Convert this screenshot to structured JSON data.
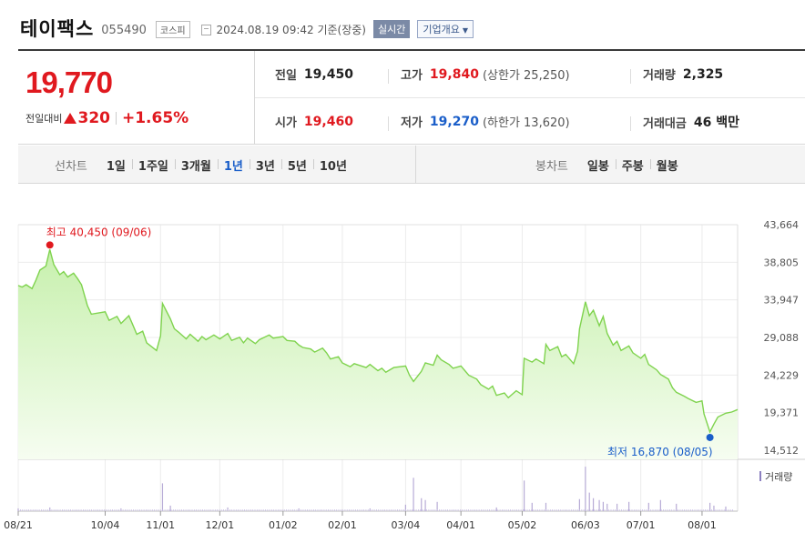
{
  "stock": {
    "name": "테이팩스",
    "code": "055490",
    "market": "코스피",
    "datetime": "2024.08.19 09:42",
    "basis": "기준(장중)",
    "realtime_label": "실시간",
    "overview_label": "기업개요"
  },
  "quote": {
    "price": "19,770",
    "change_label": "전일대비",
    "change": "320",
    "change_pct": "+1.65%",
    "prev_close_label": "전일",
    "prev_close": "19,450",
    "high_label": "고가",
    "high": "19,840",
    "upper_limit": "(상한가 25,250)",
    "volume_label": "거래량",
    "volume": "2,325",
    "open_label": "시가",
    "open": "19,460",
    "low_label": "저가",
    "low": "19,270",
    "lower_limit": "(하한가 13,620)",
    "amount_label": "거래대금",
    "amount": "46 백만",
    "up_color": "#e0191f",
    "down_color": "#1a5ec9"
  },
  "periods": {
    "label": "선차트",
    "items": [
      "1일",
      "1주일",
      "3개월",
      "1년",
      "3년",
      "5년",
      "10년"
    ],
    "active": "1년"
  },
  "candles": {
    "label": "봉차트",
    "items": [
      "일봉",
      "주봉",
      "월봉"
    ]
  },
  "chart_data": {
    "type": "area",
    "x_labels": [
      "08/21",
      "10/04",
      "11/01",
      "12/01",
      "01/02",
      "02/01",
      "03/04",
      "04/01",
      "05/02",
      "06/03",
      "07/01",
      "08/01"
    ],
    "y_ticks": [
      "43,664",
      "38,805",
      "33,947",
      "29,088",
      "24,229",
      "19,371",
      "14,512"
    ],
    "ylim": [
      14512,
      43664
    ],
    "max_label": "최고 40,450 (09/06)",
    "min_label": "최저 16,870 (08/05)",
    "volume_legend": "거래량",
    "line_color": "#7fd34e",
    "fill_color": "#e9f9df",
    "price_series": [
      [
        "2023-08-21",
        35800
      ],
      [
        "2023-08-23",
        35600
      ],
      [
        "2023-08-25",
        35900
      ],
      [
        "2023-08-28",
        35400
      ],
      [
        "2023-08-30",
        36500
      ],
      [
        "2023-09-01",
        37800
      ],
      [
        "2023-09-04",
        38300
      ],
      [
        "2023-09-06",
        40450
      ],
      [
        "2023-09-08",
        38500
      ],
      [
        "2023-09-11",
        37200
      ],
      [
        "2023-09-13",
        37600
      ],
      [
        "2023-09-15",
        36900
      ],
      [
        "2023-09-18",
        37400
      ],
      [
        "2023-09-20",
        36700
      ],
      [
        "2023-09-22",
        35900
      ],
      [
        "2023-09-25",
        33200
      ],
      [
        "2023-09-27",
        32100
      ],
      [
        "2023-10-04",
        32400
      ],
      [
        "2023-10-06",
        31300
      ],
      [
        "2023-10-10",
        31800
      ],
      [
        "2023-10-12",
        30900
      ],
      [
        "2023-10-16",
        31900
      ],
      [
        "2023-10-18",
        30700
      ],
      [
        "2023-10-20",
        29500
      ],
      [
        "2023-10-23",
        29900
      ],
      [
        "2023-10-25",
        28400
      ],
      [
        "2023-10-27",
        28000
      ],
      [
        "2023-10-30",
        27400
      ],
      [
        "2023-11-01",
        29300
      ],
      [
        "2023-11-02",
        33500
      ],
      [
        "2023-11-06",
        31500
      ],
      [
        "2023-11-08",
        30200
      ],
      [
        "2023-11-10",
        29800
      ],
      [
        "2023-11-14",
        28900
      ],
      [
        "2023-11-16",
        29500
      ],
      [
        "2023-11-20",
        28600
      ],
      [
        "2023-11-22",
        29200
      ],
      [
        "2023-11-24",
        28800
      ],
      [
        "2023-11-28",
        29400
      ],
      [
        "2023-12-01",
        28900
      ],
      [
        "2023-12-05",
        29600
      ],
      [
        "2023-12-07",
        28700
      ],
      [
        "2023-12-11",
        29100
      ],
      [
        "2023-12-13",
        28400
      ],
      [
        "2023-12-15",
        29000
      ],
      [
        "2023-12-19",
        28300
      ],
      [
        "2023-12-21",
        28800
      ],
      [
        "2023-12-26",
        29400
      ],
      [
        "2023-12-28",
        29000
      ],
      [
        "2024-01-02",
        29200
      ],
      [
        "2024-01-04",
        28700
      ],
      [
        "2024-01-08",
        28600
      ],
      [
        "2024-01-10",
        28100
      ],
      [
        "2024-01-12",
        27800
      ],
      [
        "2024-01-16",
        27600
      ],
      [
        "2024-01-18",
        27200
      ],
      [
        "2024-01-22",
        27700
      ],
      [
        "2024-01-24",
        27100
      ],
      [
        "2024-01-26",
        26300
      ],
      [
        "2024-01-30",
        26600
      ],
      [
        "2024-02-01",
        25800
      ],
      [
        "2024-02-05",
        25300
      ],
      [
        "2024-02-07",
        25700
      ],
      [
        "2024-02-13",
        25200
      ],
      [
        "2024-02-15",
        25600
      ],
      [
        "2024-02-19",
        24800
      ],
      [
        "2024-02-21",
        25100
      ],
      [
        "2024-02-23",
        24600
      ],
      [
        "2024-02-27",
        25200
      ],
      [
        "2024-03-04",
        25400
      ],
      [
        "2024-03-06",
        24200
      ],
      [
        "2024-03-08",
        23400
      ],
      [
        "2024-03-12",
        24700
      ],
      [
        "2024-03-14",
        25800
      ],
      [
        "2024-03-18",
        25500
      ],
      [
        "2024-03-20",
        26800
      ],
      [
        "2024-03-22",
        26200
      ],
      [
        "2024-03-26",
        25600
      ],
      [
        "2024-03-28",
        25100
      ],
      [
        "2024-04-01",
        25400
      ],
      [
        "2024-04-03",
        24800
      ],
      [
        "2024-04-05",
        24200
      ],
      [
        "2024-04-09",
        23700
      ],
      [
        "2024-04-11",
        23000
      ],
      [
        "2024-04-15",
        22400
      ],
      [
        "2024-04-17",
        22800
      ],
      [
        "2024-04-19",
        21600
      ],
      [
        "2024-04-23",
        21900
      ],
      [
        "2024-04-25",
        21300
      ],
      [
        "2024-04-29",
        22200
      ],
      [
        "2024-05-02",
        21700
      ],
      [
        "2024-05-03",
        26400
      ],
      [
        "2024-05-07",
        25900
      ],
      [
        "2024-05-09",
        26300
      ],
      [
        "2024-05-13",
        25700
      ],
      [
        "2024-05-14",
        28200
      ],
      [
        "2024-05-16",
        27400
      ],
      [
        "2024-05-20",
        27900
      ],
      [
        "2024-05-22",
        26600
      ],
      [
        "2024-05-24",
        26900
      ],
      [
        "2024-05-28",
        25700
      ],
      [
        "2024-05-30",
        27300
      ],
      [
        "2024-05-31",
        30200
      ],
      [
        "2024-06-03",
        33700
      ],
      [
        "2024-06-05",
        31900
      ],
      [
        "2024-06-07",
        32600
      ],
      [
        "2024-06-10",
        30600
      ],
      [
        "2024-06-12",
        31800
      ],
      [
        "2024-06-14",
        29600
      ],
      [
        "2024-06-17",
        28100
      ],
      [
        "2024-06-19",
        28600
      ],
      [
        "2024-06-21",
        27400
      ],
      [
        "2024-06-25",
        28000
      ],
      [
        "2024-06-27",
        27100
      ],
      [
        "2024-07-01",
        26400
      ],
      [
        "2024-07-03",
        26900
      ],
      [
        "2024-07-05",
        25600
      ],
      [
        "2024-07-09",
        24900
      ],
      [
        "2024-07-11",
        24300
      ],
      [
        "2024-07-15",
        23700
      ],
      [
        "2024-07-17",
        22600
      ],
      [
        "2024-07-19",
        22000
      ],
      [
        "2024-07-23",
        21500
      ],
      [
        "2024-07-25",
        21200
      ],
      [
        "2024-07-29",
        20700
      ],
      [
        "2024-08-01",
        20900
      ],
      [
        "2024-08-02",
        19200
      ],
      [
        "2024-08-05",
        16870
      ],
      [
        "2024-08-07",
        17900
      ],
      [
        "2024-08-09",
        18800
      ],
      [
        "2024-08-13",
        19300
      ],
      [
        "2024-08-16",
        19450
      ],
      [
        "2024-08-19",
        19770
      ]
    ],
    "volume_series": [
      [
        "2023-08-21",
        3
      ],
      [
        "2023-09-06",
        4
      ],
      [
        "2023-10-12",
        3
      ],
      [
        "2023-11-02",
        30
      ],
      [
        "2023-11-06",
        6
      ],
      [
        "2023-12-05",
        4
      ],
      [
        "2024-01-10",
        3
      ],
      [
        "2024-02-15",
        3
      ],
      [
        "2024-03-04",
        7
      ],
      [
        "2024-03-08",
        36
      ],
      [
        "2024-03-12",
        14
      ],
      [
        "2024-03-14",
        12
      ],
      [
        "2024-03-20",
        10
      ],
      [
        "2024-04-19",
        4
      ],
      [
        "2024-05-03",
        33
      ],
      [
        "2024-05-07",
        9
      ],
      [
        "2024-05-14",
        9
      ],
      [
        "2024-05-31",
        13
      ],
      [
        "2024-06-03",
        48
      ],
      [
        "2024-06-05",
        20
      ],
      [
        "2024-06-07",
        14
      ],
      [
        "2024-06-10",
        12
      ],
      [
        "2024-06-12",
        10
      ],
      [
        "2024-06-14",
        8
      ],
      [
        "2024-06-19",
        8
      ],
      [
        "2024-06-25",
        10
      ],
      [
        "2024-07-05",
        9
      ],
      [
        "2024-07-11",
        12
      ],
      [
        "2024-07-19",
        8
      ],
      [
        "2024-08-05",
        9
      ],
      [
        "2024-08-07",
        6
      ],
      [
        "2024-08-13",
        5
      ]
    ]
  }
}
